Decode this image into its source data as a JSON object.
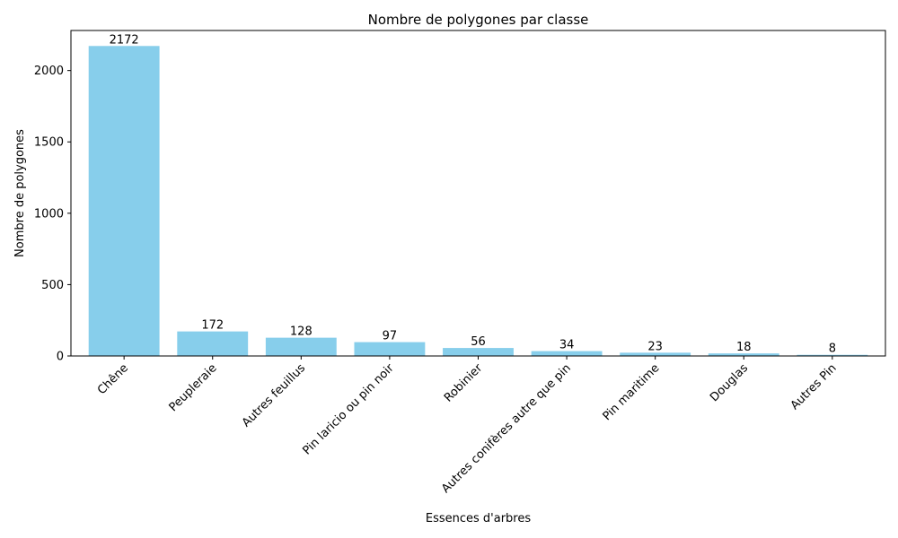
{
  "chart_data": {
    "type": "bar",
    "title": "Nombre de polygones par classe",
    "xlabel": "Essences d'arbres",
    "ylabel": "Nombre de polygones",
    "categories": [
      "Chêne",
      "Peupleraie",
      "Autres feuillus",
      "Pin laricio ou pin noir",
      "Robinier",
      "Autres conifères autre que pin",
      "Pin maritime",
      "Douglas",
      "Autres Pin"
    ],
    "values": [
      2172,
      172,
      128,
      97,
      56,
      34,
      23,
      18,
      8
    ],
    "data_labels": [
      "2172",
      "172",
      "128",
      "97",
      "56",
      "34",
      "23",
      "18",
      "8"
    ],
    "ylim": [
      0,
      2280.6
    ],
    "yticks": [
      0,
      500,
      1000,
      1500,
      2000
    ],
    "ytick_labels": [
      "0",
      "500",
      "1000",
      "1500",
      "2000"
    ],
    "bar_color": "#87ceeb",
    "grid": false,
    "legend": "none"
  }
}
